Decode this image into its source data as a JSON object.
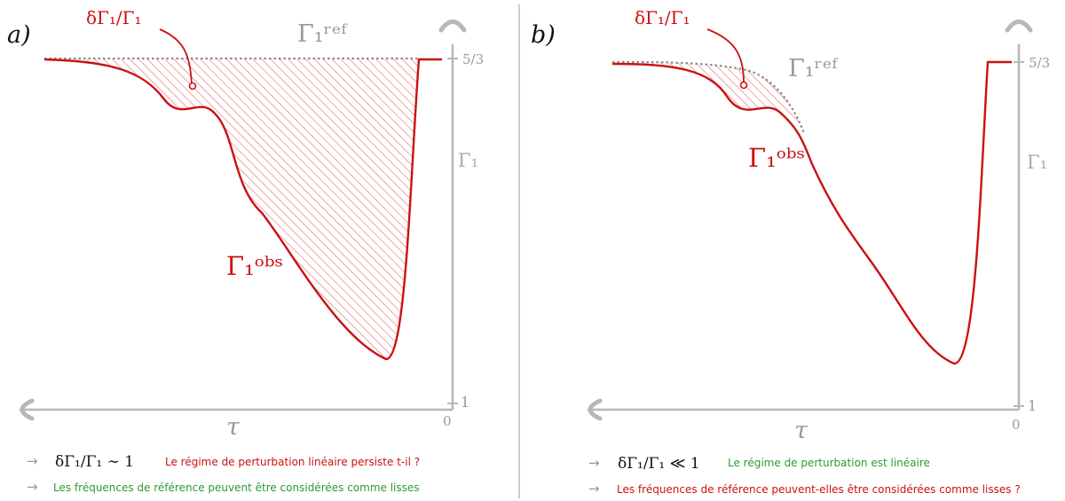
{
  "panel_a": {
    "tag": "a)",
    "ratio_label": "δΓ₁/Γ₁",
    "ref_label": "Γ₁ʳᵉᶠ",
    "obs_label": "Γ₁ᵒᵇˢ",
    "axis_y_label": "Γ₁",
    "axis_x_label": "τ",
    "tick_top": "5/3",
    "tick_bottom": "1",
    "tick_zero": "0",
    "note1_math": "δΓ₁/Γ₁ ∼ 1",
    "note1_text": "Le régime de perturbation linéaire persiste t-il ?",
    "note2_text": "Les fréquences de référence peuvent être considérées comme lisses"
  },
  "panel_b": {
    "tag": "b)",
    "ratio_label": "δΓ₁/Γ₁",
    "ref_label": "Γ₁ʳᵉᶠ",
    "obs_label": "Γ₁ᵒᵇˢ",
    "axis_y_label": "Γ₁",
    "axis_x_label": "τ",
    "tick_top": "5/3",
    "tick_bottom": "1",
    "tick_zero": "0",
    "note1_math": "δΓ₁/Γ₁ ≪ 1",
    "note1_text": "Le régime de perturbation est linéaire",
    "note2_text": "Les fréquences de référence peuvent-elles être considérées comme lisses ?"
  },
  "colors": {
    "red": "#cc1111",
    "green": "#2e9a2e",
    "gray": "#a8a8a8",
    "dotted": "#8a8a8a"
  }
}
